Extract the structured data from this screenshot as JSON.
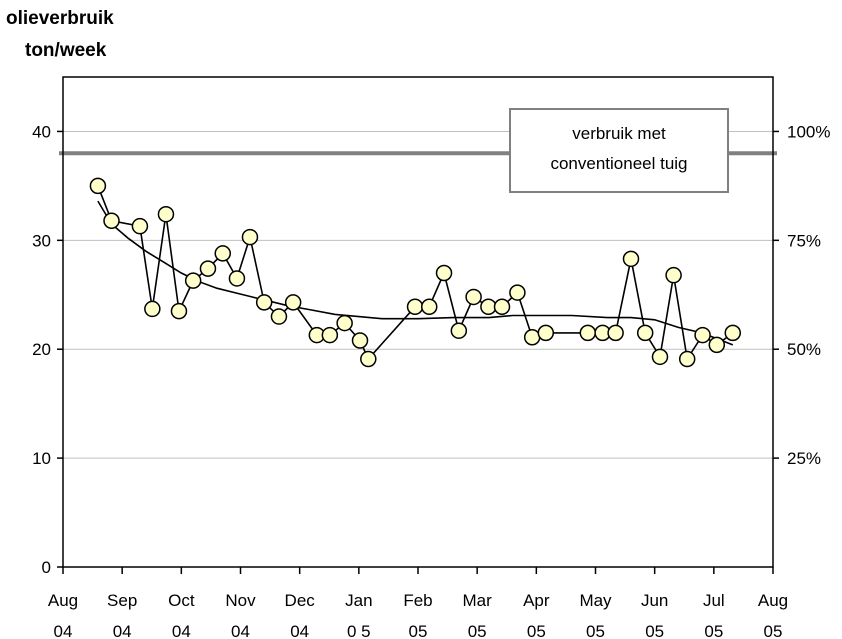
{
  "chart_data": {
    "type": "line",
    "ylabel_lines": [
      "olieverbruik",
      "ton/week"
    ],
    "ylim": [
      0,
      45
    ],
    "yticks_left": [
      0,
      10,
      20,
      30,
      40
    ],
    "yticks_right": [
      {
        "value": 10,
        "label": "25%"
      },
      {
        "value": 20,
        "label": "50%"
      },
      {
        "value": 30,
        "label": "75%"
      },
      {
        "value": 40,
        "label": "100%"
      }
    ],
    "xlim": [
      0,
      12
    ],
    "xticks": [
      {
        "l1": "Aug",
        "l2": "04"
      },
      {
        "l1": "Sep",
        "l2": "04"
      },
      {
        "l1": "Oct",
        "l2": "04"
      },
      {
        "l1": "Nov",
        "l2": "04"
      },
      {
        "l1": "Dec",
        "l2": "04"
      },
      {
        "l1": "Jan",
        "l2": "0 5"
      },
      {
        "l1": "Feb",
        "l2": "05"
      },
      {
        "l1": "Mar",
        "l2": "05"
      },
      {
        "l1": "Apr",
        "l2": "05"
      },
      {
        "l1": "May",
        "l2": "05"
      },
      {
        "l1": "Jun",
        "l2": "05"
      },
      {
        "l1": "Jul",
        "l2": "05"
      },
      {
        "l1": "Aug",
        "l2": "05"
      }
    ],
    "reference_line": {
      "value": 38,
      "label_right": "100%",
      "box_lines": [
        "verbruik met",
        "conventioneel tuig"
      ]
    },
    "colors": {
      "marker_fill": "#ffffcc",
      "reference": "#808080",
      "grid": "#c0c0c0"
    },
    "series": [
      {
        "x": [
          0.59,
          0.82,
          1.3,
          1.51,
          1.74,
          1.96,
          2.2,
          2.45,
          2.7,
          2.94,
          3.16,
          3.4,
          3.65,
          3.89,
          4.29,
          4.51,
          4.76,
          5.02,
          5.16,
          5.95,
          6.19,
          6.44,
          6.69,
          6.94,
          7.19,
          7.42,
          7.68,
          7.93,
          8.16,
          8.87,
          9.12,
          9.34,
          9.6,
          9.84,
          10.09,
          10.32,
          10.55,
          10.81,
          11.05,
          11.32
        ],
        "values": [
          35.0,
          31.8,
          31.3,
          23.7,
          32.4,
          23.5,
          26.3,
          27.4,
          28.8,
          26.5,
          30.3,
          24.3,
          23.0,
          24.3,
          21.3,
          21.3,
          22.4,
          20.8,
          19.1,
          23.9,
          23.9,
          27.0,
          21.7,
          24.8,
          23.9,
          23.9,
          25.2,
          21.1,
          21.5,
          21.5,
          21.5,
          21.5,
          28.3,
          21.5,
          19.3,
          26.8,
          19.1,
          21.3,
          20.4,
          21.5
        ]
      },
      {
        "x": [
          0.59,
          0.82,
          1.1,
          1.4,
          1.7,
          2.0,
          2.3,
          2.6,
          2.9,
          3.2,
          3.5,
          3.8,
          4.2,
          4.6,
          5.0,
          5.4,
          6.0,
          6.6,
          7.2,
          7.6,
          8.0,
          8.6,
          9.2,
          9.6,
          10.0,
          10.4,
          10.8,
          11.32
        ],
        "values": [
          33.6,
          31.5,
          30.2,
          29.0,
          28.0,
          27.0,
          26.2,
          25.6,
          25.2,
          24.8,
          24.4,
          24.0,
          23.6,
          23.2,
          23.0,
          22.8,
          22.8,
          22.9,
          22.9,
          23.1,
          23.1,
          23.1,
          22.9,
          22.9,
          22.7,
          22.0,
          21.5,
          20.4
        ]
      }
    ]
  }
}
